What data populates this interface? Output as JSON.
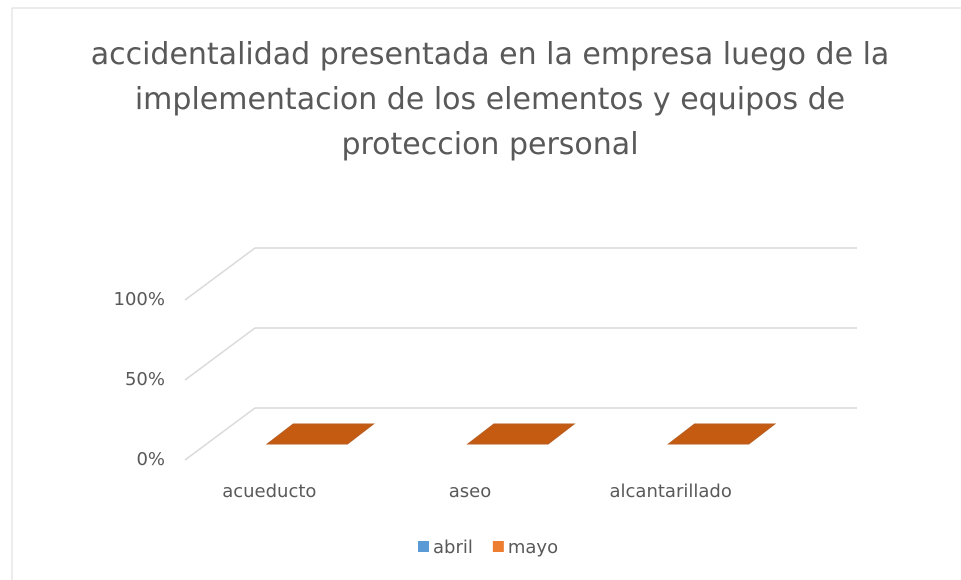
{
  "chart_data": {
    "type": "bar3d",
    "title": "accidentalidad presentada en la empresa luego de la implementacion de los elementos y equipos de proteccion personal",
    "categories": [
      "acueducto",
      "aseo",
      "alcantarillado"
    ],
    "series": [
      {
        "name": "abril",
        "color": "#5b9bd5",
        "values": [
          0,
          0,
          0
        ]
      },
      {
        "name": "mayo",
        "color": "#ed7d31",
        "values": [
          0,
          0,
          0
        ]
      }
    ],
    "ylim": [
      0,
      100
    ],
    "yticks": [
      {
        "value": 0,
        "label": "0%"
      },
      {
        "value": 50,
        "label": "50%"
      },
      {
        "value": 100,
        "label": "100%"
      }
    ],
    "grid": true,
    "legend": "bottom"
  }
}
